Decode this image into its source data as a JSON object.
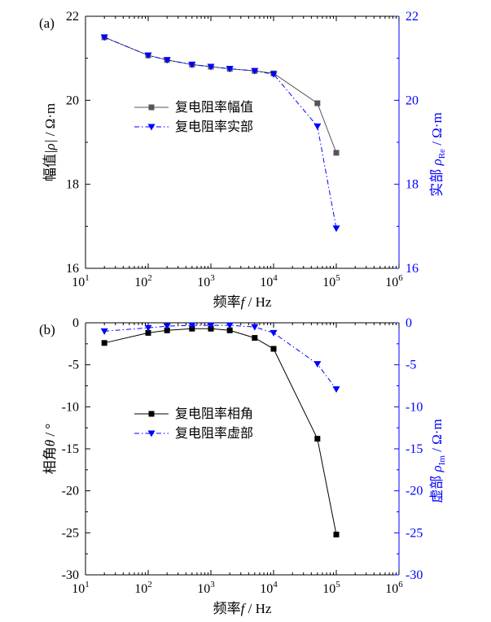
{
  "chart_data": [
    {
      "panel_label": "(a)",
      "type": "line",
      "x_scale": "log",
      "xlim": [
        10,
        1000000
      ],
      "x_ticks": [
        "10",
        "10",
        "10",
        "10",
        "10",
        "10"
      ],
      "x_tick_exponents": [
        "1",
        "2",
        "3",
        "4",
        "5",
        "6"
      ],
      "xlabel_text": "频率",
      "xlabel_symbol": "f",
      "xlabel_unit": " / Hz",
      "ylim_left": [
        16,
        22
      ],
      "y_ticks_left": [
        "16",
        "18",
        "20",
        "22"
      ],
      "ylabel_left_text": "幅值",
      "ylabel_left_symbol": "|ρ|",
      "ylabel_left_unit": " / Ω·m",
      "ylim_right": [
        16,
        22
      ],
      "y_ticks_right": [
        "16",
        "18",
        "20",
        "22"
      ],
      "ylabel_right_text": "实部",
      "ylabel_right_symbol": "ρ",
      "ylabel_right_sub": "Re",
      "ylabel_right_unit": " / Ω·m",
      "legend_position": "center-left",
      "x": [
        20,
        100,
        200,
        500,
        1000,
        2000,
        5000,
        10000,
        50000,
        100000
      ],
      "series": [
        {
          "name": "复电阻率幅值",
          "axis": "left",
          "color": "#555555",
          "marker": "square",
          "line": "solid",
          "values": [
            21.5,
            21.07,
            20.96,
            20.85,
            20.8,
            20.75,
            20.7,
            20.64,
            19.93,
            18.75
          ]
        },
        {
          "name": "复电阻率实部",
          "axis": "right",
          "color": "#0000ff",
          "marker": "triangle-down",
          "line": "dashdot",
          "values": [
            21.5,
            21.07,
            20.96,
            20.85,
            20.8,
            20.75,
            20.7,
            20.62,
            19.38,
            16.95
          ]
        }
      ]
    },
    {
      "panel_label": "(b)",
      "type": "line",
      "x_scale": "log",
      "xlim": [
        10,
        1000000
      ],
      "x_ticks": [
        "10",
        "10",
        "10",
        "10",
        "10",
        "10"
      ],
      "x_tick_exponents": [
        "1",
        "2",
        "3",
        "4",
        "5",
        "6"
      ],
      "xlabel_text": "频率",
      "xlabel_symbol": "f",
      "xlabel_unit": " /  Hz",
      "ylim_left": [
        -30,
        0
      ],
      "y_ticks_left": [
        "-30",
        "-25",
        "-20",
        "-15",
        "-10",
        "-5",
        "0"
      ],
      "ylabel_left_text": "相角",
      "ylabel_left_symbol": "θ",
      "ylabel_left_unit": " / °",
      "ylim_right": [
        -30,
        0
      ],
      "y_ticks_right": [
        "-30",
        "-25",
        "-20",
        "-15",
        "-10",
        "-5",
        "0"
      ],
      "ylabel_right_text": "虚部",
      "ylabel_right_symbol": "ρ",
      "ylabel_right_sub": "Im",
      "ylabel_right_unit": " / Ω·m",
      "legend_position": "center-left",
      "x": [
        20,
        100,
        200,
        500,
        1000,
        2000,
        5000,
        10000,
        50000,
        100000
      ],
      "series": [
        {
          "name": "复电阻率相角",
          "axis": "left",
          "color": "#000000",
          "marker": "square",
          "line": "solid",
          "values": [
            -2.4,
            -1.2,
            -0.9,
            -0.7,
            -0.7,
            -0.9,
            -1.8,
            -3.1,
            -13.8,
            -25.2
          ]
        },
        {
          "name": "复电阻率虚部",
          "axis": "right",
          "color": "#0000ff",
          "marker": "triangle-down",
          "line": "dashdot",
          "values": [
            -1.0,
            -0.6,
            -0.4,
            -0.3,
            -0.3,
            -0.3,
            -0.5,
            -1.2,
            -4.9,
            -7.9
          ]
        }
      ]
    }
  ]
}
